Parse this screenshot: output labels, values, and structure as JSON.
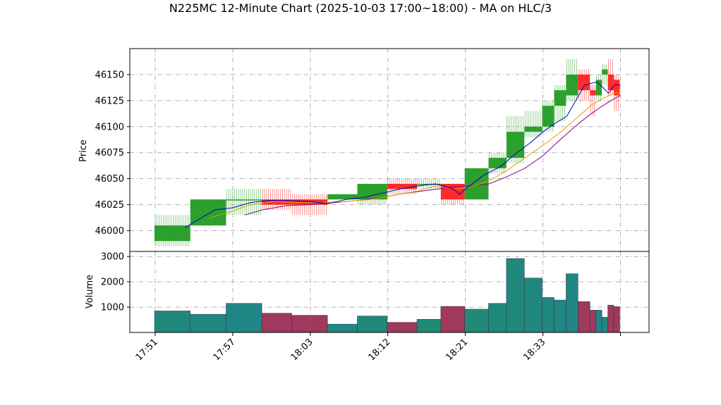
{
  "chart_data": {
    "type": "candlestick",
    "title": "N225MC 12-Minute Chart (2025-10-03 17:00~18:00) - MA on HLC/3",
    "price_panel": {
      "ylabel": "Price",
      "yticks": [
        46000,
        46025,
        46050,
        46075,
        46100,
        46125,
        46150
      ],
      "ylim": [
        45980,
        46175
      ],
      "grid": true
    },
    "volume_panel": {
      "ylabel": "Volume",
      "yticks": [
        1000,
        2000,
        3000
      ],
      "ylim": [
        0,
        3200
      ],
      "grid": true
    },
    "xticks": [
      {
        "label": "17:51",
        "idx": 0
      },
      {
        "label": "17:57",
        "idx": 13
      },
      {
        "label": "18:03",
        "idx": 26
      },
      {
        "label": "18:12",
        "idx": 39
      },
      {
        "label": "18:21",
        "idx": 52
      },
      {
        "label": "18:33",
        "idx": 65
      }
    ],
    "n_slots": 79,
    "colors": {
      "up": "#2ca02c",
      "down": "#ff2a2a",
      "ma_fast": "#0000cc",
      "ma_mid": "#e6a000",
      "ma_slow": "#880088",
      "vol_up": "#1f8a70",
      "vol_down": "#a23b5f"
    },
    "bars": [
      {
        "start": 0,
        "end": 6,
        "open": 45990,
        "high": 46015,
        "low": 45985,
        "close": 46005,
        "volume": 850
      },
      {
        "start": 6,
        "end": 12,
        "open": 46005,
        "high": 46030,
        "low": 46005,
        "close": 46030,
        "volume": 720
      },
      {
        "start": 12,
        "end": 18,
        "open": 46030,
        "high": 46040,
        "low": 46015,
        "close": 46030,
        "volume": 1150
      },
      {
        "start": 18,
        "end": 23,
        "open": 46030,
        "high": 46040,
        "low": 46020,
        "close": 46025,
        "volume": 760
      },
      {
        "start": 23,
        "end": 29,
        "open": 46030,
        "high": 46035,
        "low": 46015,
        "close": 46025,
        "volume": 680
      },
      {
        "start": 29,
        "end": 34,
        "open": 46030,
        "high": 46035,
        "low": 46030,
        "close": 46035,
        "volume": 330
      },
      {
        "start": 34,
        "end": 39,
        "open": 46030,
        "high": 46045,
        "low": 46025,
        "close": 46045,
        "volume": 650
      },
      {
        "start": 39,
        "end": 44,
        "open": 46045,
        "high": 46050,
        "low": 46035,
        "close": 46040,
        "volume": 400
      },
      {
        "start": 44,
        "end": 48,
        "open": 46045,
        "high": 46050,
        "low": 46040,
        "close": 46045,
        "volume": 520
      },
      {
        "start": 48,
        "end": 52,
        "open": 46045,
        "high": 46045,
        "low": 46025,
        "close": 46030,
        "volume": 1030
      },
      {
        "start": 52,
        "end": 56,
        "open": 46030,
        "high": 46060,
        "low": 46030,
        "close": 46060,
        "volume": 920
      },
      {
        "start": 56,
        "end": 59,
        "open": 46060,
        "high": 46075,
        "low": 46055,
        "close": 46070,
        "volume": 1150
      },
      {
        "start": 59,
        "end": 62,
        "open": 46070,
        "high": 46110,
        "low": 46065,
        "close": 46095,
        "volume": 2920
      },
      {
        "start": 62,
        "end": 65,
        "open": 46095,
        "high": 46115,
        "low": 46090,
        "close": 46100,
        "volume": 2150
      },
      {
        "start": 65,
        "end": 67,
        "open": 46100,
        "high": 46125,
        "low": 46095,
        "close": 46120,
        "volume": 1380
      },
      {
        "start": 67,
        "end": 69,
        "open": 46120,
        "high": 46140,
        "low": 46105,
        "close": 46135,
        "volume": 1280
      },
      {
        "start": 69,
        "end": 71,
        "open": 46130,
        "high": 46165,
        "low": 46125,
        "close": 46150,
        "volume": 2320
      },
      {
        "start": 71,
        "end": 73,
        "open": 46150,
        "high": 46155,
        "low": 46125,
        "close": 46135,
        "volume": 1220
      },
      {
        "start": 73,
        "end": 74,
        "open": 46135,
        "high": 46140,
        "low": 46110,
        "close": 46130,
        "volume": 880
      },
      {
        "start": 74,
        "end": 75,
        "open": 46130,
        "high": 46150,
        "low": 46125,
        "close": 46145,
        "volume": 880
      },
      {
        "start": 75,
        "end": 76,
        "open": 46150,
        "high": 46160,
        "low": 46140,
        "close": 46155,
        "volume": 600
      },
      {
        "start": 76,
        "end": 77,
        "open": 46150,
        "high": 46165,
        "low": 46130,
        "close": 46135,
        "volume": 1080
      },
      {
        "start": 77,
        "end": 78,
        "open": 46145,
        "high": 46150,
        "low": 46115,
        "close": 46130,
        "volume": 1020
      }
    ],
    "ma_fast": [
      [
        5,
        46003
      ],
      [
        10,
        46020
      ],
      [
        13,
        46022
      ],
      [
        16,
        46027
      ],
      [
        19,
        46029
      ],
      [
        22,
        46029
      ],
      [
        26,
        46028
      ],
      [
        29,
        46026
      ],
      [
        32,
        46030
      ],
      [
        35,
        46032
      ],
      [
        38,
        46036
      ],
      [
        41,
        46040
      ],
      [
        44,
        46043
      ],
      [
        47,
        46045
      ],
      [
        50,
        46040
      ],
      [
        51,
        46035
      ],
      [
        52,
        46040
      ],
      [
        55,
        46053
      ],
      [
        58,
        46062
      ],
      [
        60,
        46072
      ],
      [
        63,
        46085
      ],
      [
        65,
        46095
      ],
      [
        67,
        46103
      ],
      [
        69,
        46110
      ],
      [
        70,
        46120
      ],
      [
        71,
        46130
      ],
      [
        72,
        46140
      ],
      [
        74,
        46143
      ],
      [
        75,
        46138
      ],
      [
        76,
        46132
      ],
      [
        77,
        46140
      ],
      [
        78,
        46140
      ]
    ],
    "ma_mid": [
      [
        9,
        46012
      ],
      [
        12,
        46017
      ],
      [
        16,
        46025
      ],
      [
        20,
        46028
      ],
      [
        24,
        46027
      ],
      [
        28,
        46027
      ],
      [
        32,
        46028
      ],
      [
        36,
        46030
      ],
      [
        40,
        46034
      ],
      [
        44,
        46038
      ],
      [
        47,
        46043
      ],
      [
        50,
        46040
      ],
      [
        53,
        46042
      ],
      [
        56,
        46048
      ],
      [
        59,
        46058
      ],
      [
        62,
        46070
      ],
      [
        65,
        46082
      ],
      [
        68,
        46095
      ],
      [
        71,
        46110
      ],
      [
        73,
        46120
      ],
      [
        75,
        46127
      ],
      [
        77,
        46132
      ],
      [
        78,
        46133
      ]
    ],
    "ma_slow": [
      [
        15,
        46015
      ],
      [
        18,
        46020
      ],
      [
        22,
        46024
      ],
      [
        26,
        46025
      ],
      [
        30,
        46027
      ],
      [
        34,
        46029
      ],
      [
        38,
        46032
      ],
      [
        42,
        46036
      ],
      [
        46,
        46039
      ],
      [
        50,
        46042
      ],
      [
        53,
        46043
      ],
      [
        56,
        46045
      ],
      [
        59,
        46052
      ],
      [
        62,
        46060
      ],
      [
        65,
        46072
      ],
      [
        68,
        46088
      ],
      [
        71,
        46103
      ],
      [
        73,
        46112
      ],
      [
        75,
        46120
      ],
      [
        77,
        46127
      ],
      [
        78,
        46130
      ]
    ]
  }
}
